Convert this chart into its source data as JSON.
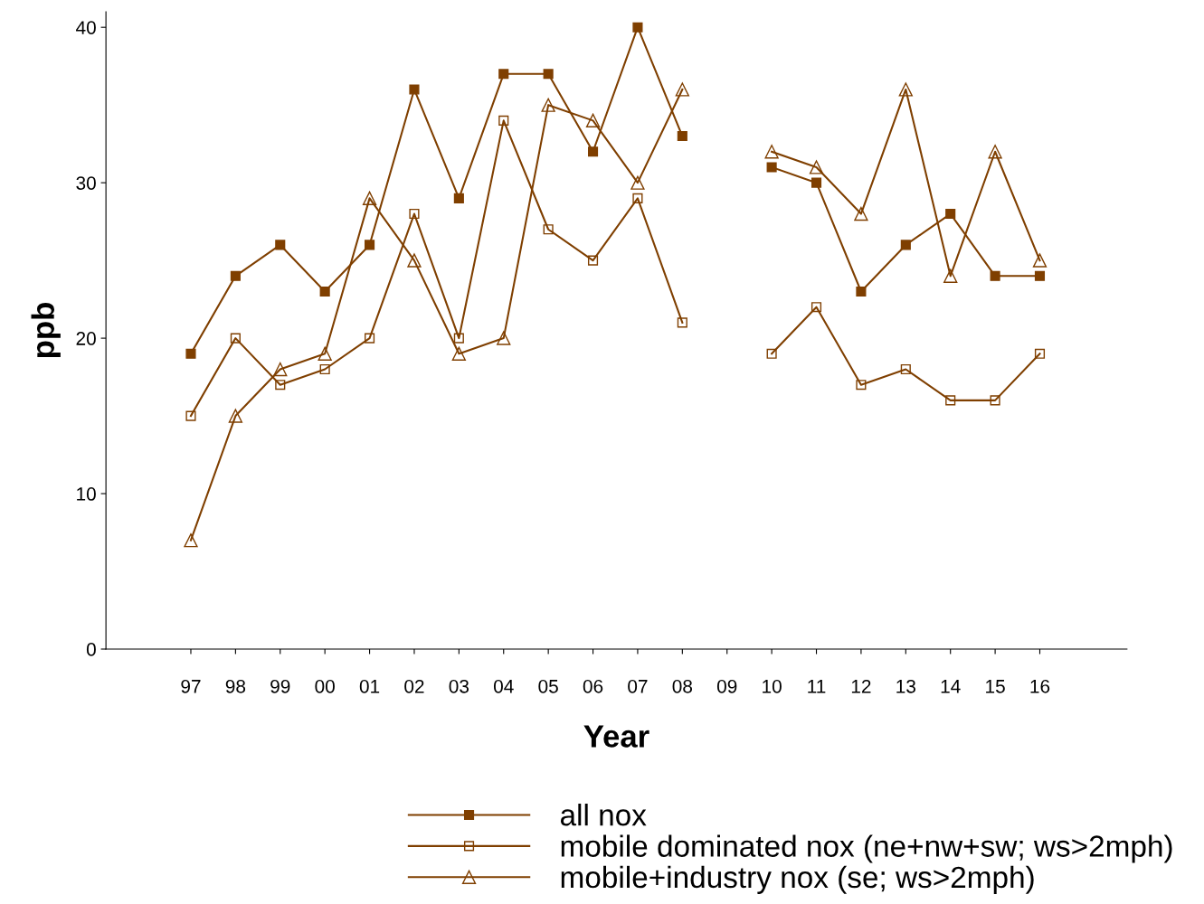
{
  "chart_data": {
    "type": "line",
    "xlabel": "Year",
    "ylabel": "ppb",
    "categories": [
      "97",
      "98",
      "99",
      "00",
      "01",
      "02",
      "03",
      "04",
      "05",
      "06",
      "07",
      "08",
      "09",
      "10",
      "11",
      "12",
      "13",
      "14",
      "15",
      "16"
    ],
    "series": [
      {
        "name": "all nox",
        "color": "#7f3f00",
        "marker": "square",
        "values": [
          19,
          24,
          26,
          23,
          26,
          36,
          29,
          37,
          37,
          32,
          40,
          33,
          null,
          31,
          30,
          23,
          26,
          28,
          24,
          24
        ]
      },
      {
        "name": "mobile dominated nox (ne+nw+sw; ws>2mph)",
        "color": "#7f3f00",
        "marker": "square",
        "values": [
          15,
          20,
          17,
          18,
          20,
          28,
          20,
          34,
          27,
          25,
          29,
          21,
          null,
          19,
          22,
          17,
          18,
          16,
          16,
          19
        ]
      },
      {
        "name": "mobile+industry nox (se; ws>2mph)",
        "color": "#7f3f00",
        "marker": "triangle",
        "values": [
          7,
          15,
          18,
          19,
          29,
          25,
          19,
          20,
          35,
          34,
          30,
          36,
          null,
          32,
          31,
          28,
          36,
          24,
          32,
          25
        ]
      }
    ],
    "ylim": [
      0,
      41
    ],
    "yticks": [
      0,
      10,
      20,
      30,
      40
    ],
    "grid": false,
    "legend": "bottom",
    "line_style": "solid"
  }
}
